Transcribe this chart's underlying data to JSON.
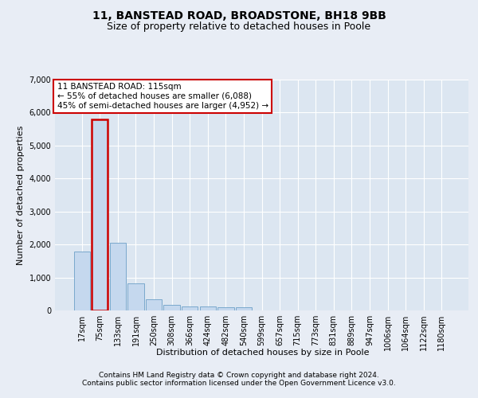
{
  "title": "11, BANSTEAD ROAD, BROADSTONE, BH18 9BB",
  "subtitle": "Size of property relative to detached houses in Poole",
  "xlabel": "Distribution of detached houses by size in Poole",
  "ylabel": "Number of detached properties",
  "bar_labels": [
    "17sqm",
    "75sqm",
    "133sqm",
    "191sqm",
    "250sqm",
    "308sqm",
    "366sqm",
    "424sqm",
    "482sqm",
    "540sqm",
    "599sqm",
    "657sqm",
    "715sqm",
    "773sqm",
    "831sqm",
    "889sqm",
    "947sqm",
    "1006sqm",
    "1064sqm",
    "1122sqm",
    "1180sqm"
  ],
  "bar_values": [
    1780,
    5800,
    2060,
    820,
    340,
    180,
    120,
    110,
    100,
    85,
    0,
    0,
    0,
    0,
    0,
    0,
    0,
    0,
    0,
    0,
    0
  ],
  "highlight_bar_index": 1,
  "bar_color": "#c5d8ee",
  "bar_edge_color": "#7aa8cc",
  "highlight_bar_edge_color": "#cc0000",
  "background_color": "#e8edf5",
  "plot_bg_color": "#dce6f1",
  "grid_color": "#ffffff",
  "ylim": [
    0,
    7000
  ],
  "yticks": [
    0,
    1000,
    2000,
    3000,
    4000,
    5000,
    6000,
    7000
  ],
  "annotation_text": "11 BANSTEAD ROAD: 115sqm\n← 55% of detached houses are smaller (6,088)\n45% of semi-detached houses are larger (4,952) →",
  "annotation_box_color": "#ffffff",
  "annotation_box_edge": "#cc0000",
  "footer_line1": "Contains HM Land Registry data © Crown copyright and database right 2024.",
  "footer_line2": "Contains public sector information licensed under the Open Government Licence v3.0.",
  "title_fontsize": 10,
  "subtitle_fontsize": 9,
  "axis_label_fontsize": 8,
  "tick_fontsize": 7,
  "annotation_fontsize": 7.5,
  "footer_fontsize": 6.5
}
